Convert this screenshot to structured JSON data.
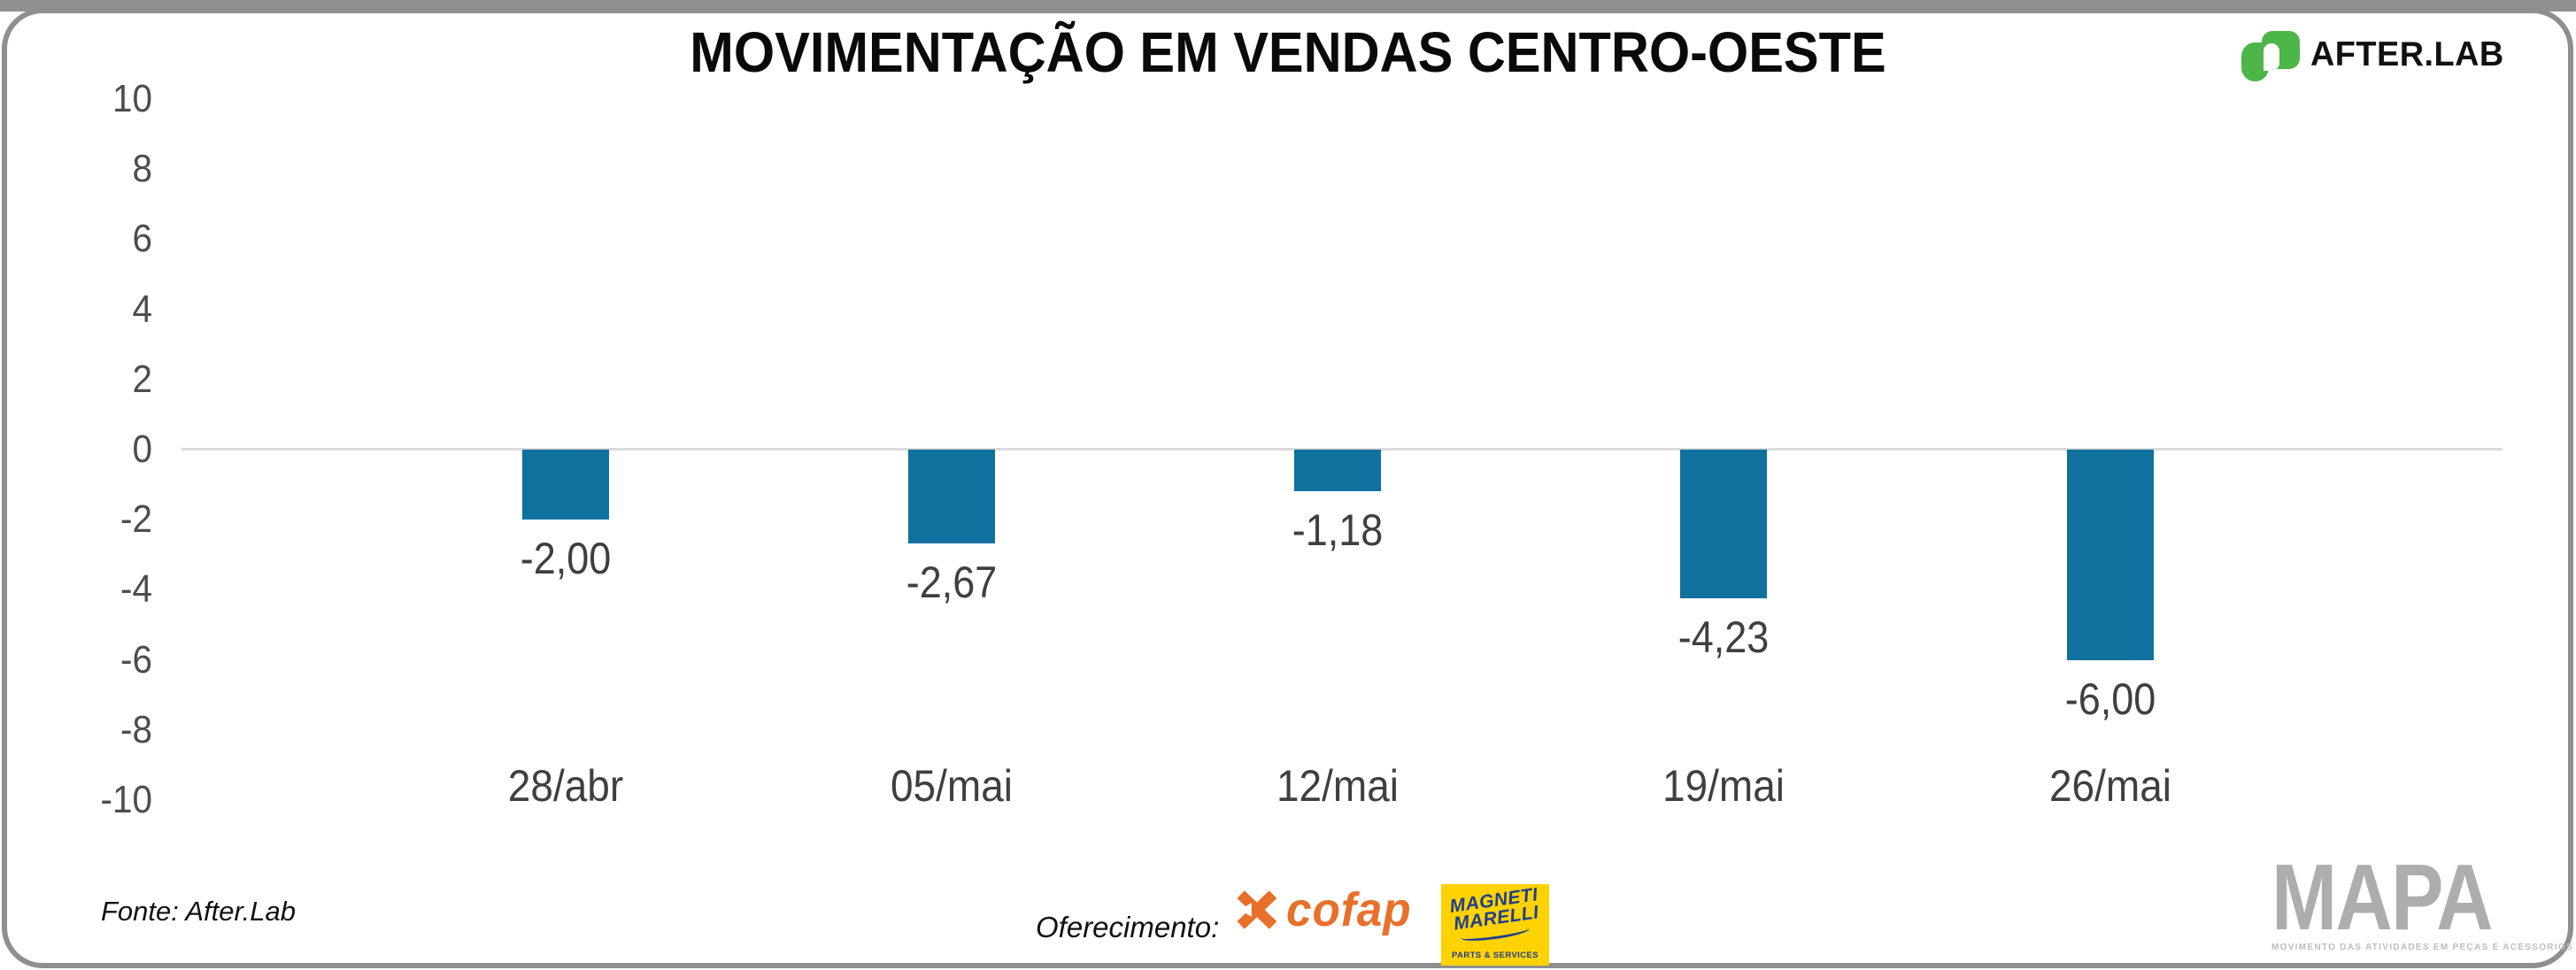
{
  "header": {
    "title": "MOVIMENTAÇÃO EM VENDAS CENTRO-OESTE"
  },
  "brand": {
    "name": "AFTER.LAB",
    "icon": "afterlab-leaf-icon",
    "green": "#4cb748"
  },
  "chart_data": {
    "type": "bar",
    "title": "MOVIMENTAÇÃO EM VENDAS CENTRO-OESTE",
    "categories": [
      "28/abr",
      "05/mai",
      "12/mai",
      "19/mai",
      "26/mai"
    ],
    "values": [
      -2.0,
      -2.67,
      -1.18,
      -4.23,
      -6.0
    ],
    "value_labels": [
      "-2,00",
      "-2,67",
      "-1,18",
      "-4,23",
      "-6,00"
    ],
    "xlabel": "",
    "ylabel": "",
    "ylim": [
      -10,
      10
    ],
    "yticks": [
      10,
      8,
      6,
      4,
      2,
      0,
      -2,
      -4,
      -6,
      -8,
      -10
    ],
    "grid": "zero-line-only",
    "legend": "none",
    "bar_color": "#10709e"
  },
  "footer": {
    "source": "Fonte: After.Lab",
    "sponsor_label": "Oferecimento:",
    "sponsors": [
      {
        "name": "cofap",
        "color": "#e8702a",
        "icon": "cofap-x-icon"
      },
      {
        "name_line1": "MAGNETI",
        "name_line2": "MARELLI",
        "subtitle": "PARTS & SERVICES",
        "bg": "#ffd200",
        "fg": "#1e3e8f"
      }
    ],
    "mapa": {
      "title": "MAPA",
      "subtitle": "MOVIMENTO DAS ATIVIDADES EM PEÇAS E ACESSORIOS"
    }
  }
}
